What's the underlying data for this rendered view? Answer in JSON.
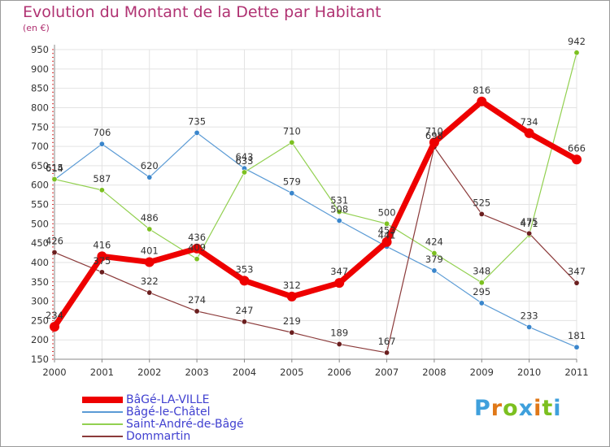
{
  "title": "Evolution du Montant de la Dette par Habitant",
  "unit": "(en €)",
  "logo": {
    "letters": [
      {
        "ch": "P",
        "color": "#3fa0dc"
      },
      {
        "ch": "r",
        "color": "#e07818"
      },
      {
        "ch": "o",
        "color": "#7cc020"
      },
      {
        "ch": "x",
        "color": "#3fa0dc"
      },
      {
        "ch": "i",
        "color": "#e07818"
      },
      {
        "ch": "t",
        "color": "#7cc020"
      },
      {
        "ch": "i",
        "color": "#3fa0dc"
      }
    ]
  },
  "chart_data": {
    "type": "line",
    "title": "Evolution du Montant de la Dette par Habitant",
    "ylabel": "(en €)",
    "x": [
      "2000",
      "2001",
      "2002",
      "2003",
      "2004",
      "2005",
      "2006",
      "2007",
      "2008",
      "2009",
      "2010",
      "2011"
    ],
    "ylim": [
      150,
      950
    ],
    "yticks": [
      150,
      200,
      250,
      300,
      350,
      400,
      450,
      500,
      550,
      600,
      650,
      700,
      750,
      800,
      850,
      900,
      950
    ],
    "grid": true,
    "legend_position": "bottom-left",
    "series": [
      {
        "name": "BâGé-LA-VILLE",
        "color": "#ee0000",
        "marker": "#ee0000",
        "width": 7,
        "radius": 6,
        "values": [
          234,
          416,
          401,
          436,
          353,
          312,
          347,
          453,
          710,
          816,
          734,
          666
        ],
        "labels": [
          "234",
          "416",
          "401",
          "436",
          "353",
          "312",
          "347",
          "453",
          "710",
          "816",
          "734",
          "666"
        ]
      },
      {
        "name": "Bâgé-le-Châtel",
        "color": "#5b9bd5",
        "marker": "#3a86cc",
        "width": 1.2,
        "radius": 3.2,
        "values": [
          614,
          706,
          620,
          735,
          643,
          579,
          508,
          441,
          379,
          295,
          233,
          181
        ],
        "labels": [
          "614",
          "706",
          "620",
          "735",
          "643",
          "579",
          "508",
          "441",
          "379",
          "295",
          "233",
          "181"
        ]
      },
      {
        "name": "Saint-André-de-Bâgé",
        "color": "#92d050",
        "marker": "#7cc020",
        "width": 1.2,
        "radius": 3.2,
        "values": [
          615,
          587,
          486,
          409,
          633,
          710,
          531,
          500,
          424,
          348,
          471,
          942
        ],
        "labels": [
          "615",
          "587",
          "486",
          "409",
          "633",
          "710",
          "531",
          "500",
          "424",
          "348",
          "471",
          "942"
        ]
      },
      {
        "name": "Dommartin",
        "color": "#8b3a3a",
        "marker": "#6b1f1f",
        "width": 1.2,
        "radius": 3.2,
        "values": [
          426,
          375,
          322,
          274,
          247,
          219,
          189,
          167,
          698,
          525,
          475,
          347
        ],
        "labels": [
          "426",
          "375",
          "322",
          "274",
          "247",
          "219",
          "189",
          "167",
          "698",
          "525",
          "475",
          "347"
        ]
      }
    ]
  }
}
